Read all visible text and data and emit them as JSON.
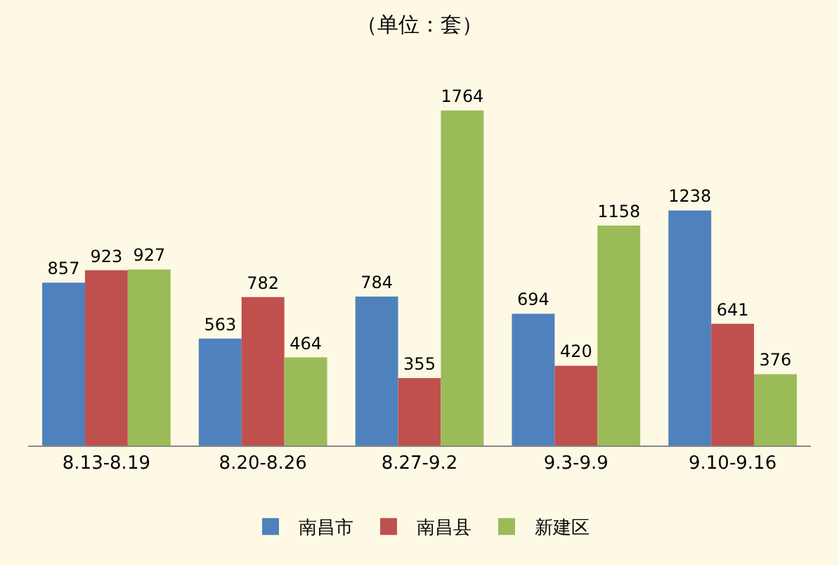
{
  "chart_data": {
    "type": "bar",
    "title": "（单位：套）",
    "categories": [
      "8.13-8.19",
      "8.20-8.26",
      "8.27-9.2",
      "9.3-9.9",
      "9.10-9.16"
    ],
    "series": [
      {
        "name": "南昌市",
        "color": "#4f81bd",
        "values": [
          857,
          563,
          784,
          694,
          1238
        ]
      },
      {
        "name": "南昌县",
        "color": "#c0504d",
        "values": [
          923,
          782,
          355,
          420,
          641
        ]
      },
      {
        "name": "新建区",
        "color": "#9bbb59",
        "values": [
          927,
          464,
          1764,
          1158,
          376
        ]
      }
    ],
    "data_labels": true,
    "legend": "bottom"
  }
}
